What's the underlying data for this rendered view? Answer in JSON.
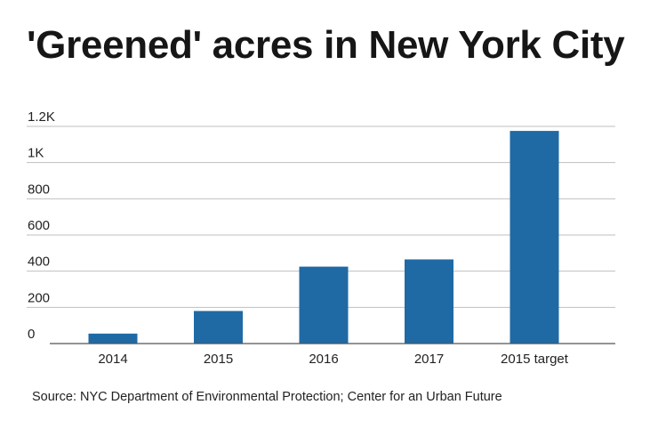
{
  "chart_data": {
    "type": "bar",
    "title": "'Greened' acres in New York City",
    "categories": [
      "2014",
      "2015",
      "2016",
      "2017",
      "2015 target"
    ],
    "values": [
      55,
      180,
      425,
      465,
      1175
    ],
    "y_ticks": [
      0,
      200,
      400,
      600,
      800,
      1000,
      1200
    ],
    "y_tick_labels": [
      "0",
      "200",
      "400",
      "600",
      "800",
      "1K",
      "1.2K"
    ],
    "ylim": [
      0,
      1200
    ],
    "xlabel": "",
    "ylabel": "",
    "grid": true,
    "legend": "none",
    "source": "Source: NYC Department of Environmental Protection; Center for an Urban Future",
    "colors": {
      "bar": "#1f6aa5",
      "grid": "#bfbfbf",
      "axis": "#555555",
      "text": "#222222"
    }
  }
}
